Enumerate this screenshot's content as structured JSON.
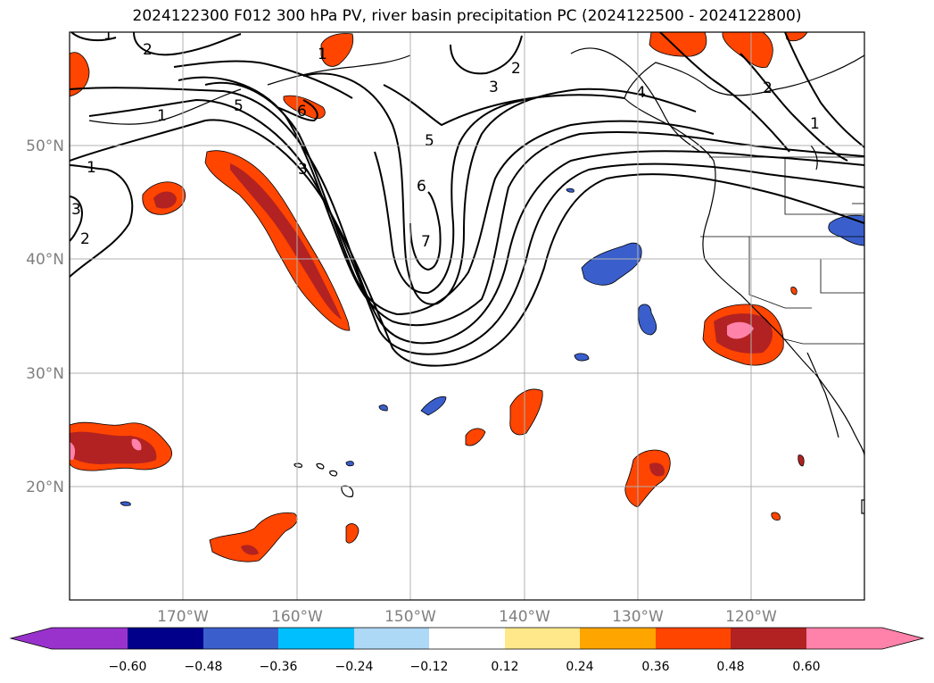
{
  "title": "2024122300 F012 300 hPa PV, river basin precipitation PC (2024122500 - 2024122800)",
  "lat_labels": [
    "50°N",
    "40°N",
    "30°N",
    "20°N"
  ],
  "lon_labels": [
    "170°W",
    "160°W",
    "150°W",
    "140°W",
    "130°W",
    "120°W"
  ],
  "contour_labels": [
    "1",
    "2",
    "1",
    "2",
    "3",
    "5",
    "6",
    "1",
    "1",
    "3",
    "2",
    "3",
    "2",
    "5",
    "6",
    "7",
    "4",
    "2",
    "1"
  ],
  "colorbar": {
    "ticks": [
      "−0.60",
      "−0.48",
      "−0.36",
      "−0.24",
      "−0.12",
      "0.12",
      "0.24",
      "0.36",
      "0.48",
      "0.60"
    ],
    "colors": [
      "#9932cc",
      "#00008b",
      "#3a5fcd",
      "#00bfff",
      "#add8f6",
      "#ffffff",
      "#ffe88a",
      "#ffa500",
      "#ff4500",
      "#b22222",
      "#ff82ab",
      "#ff82ab"
    ]
  }
}
